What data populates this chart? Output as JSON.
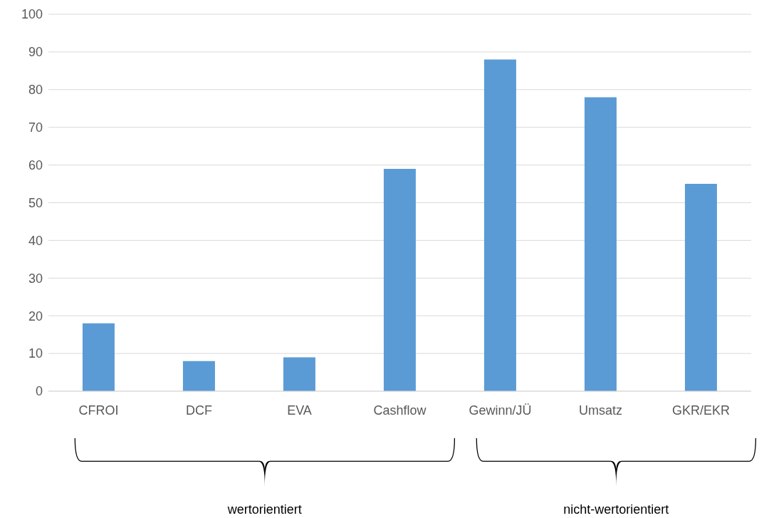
{
  "chart_data": {
    "type": "bar",
    "categories": [
      "CFROI",
      "DCF",
      "EVA",
      "Cashflow",
      "Gewinn/JÜ",
      "Umsatz",
      "GKR/EKR"
    ],
    "values": [
      18,
      8,
      9,
      59,
      88,
      78,
      55
    ],
    "color": "#5b9bd5",
    "ylim": [
      0,
      100
    ],
    "yticks": [
      0,
      10,
      20,
      30,
      40,
      50,
      60,
      70,
      80,
      90,
      100
    ],
    "grid": "y",
    "annotations": [
      "wertorientiert",
      "nicht-wertorientiert"
    ]
  }
}
